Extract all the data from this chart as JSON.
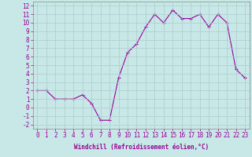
{
  "x": [
    0,
    1,
    2,
    3,
    4,
    5,
    6,
    7,
    8,
    9,
    10,
    11,
    12,
    13,
    14,
    15,
    16,
    17,
    18,
    19,
    20,
    21,
    22,
    23
  ],
  "y": [
    2,
    2,
    1,
    1,
    1,
    1.5,
    0.5,
    -1.5,
    -1.5,
    3.5,
    6.5,
    7.5,
    9.5,
    11,
    10,
    11.5,
    10.5,
    10.5,
    11,
    9.5,
    11,
    10,
    4.5,
    3.5
  ],
  "line_color": "#990099",
  "marker": "+",
  "markersize": 3,
  "linewidth": 0.8,
  "xlabel": "Windchill (Refroidissement éolien,°C)",
  "xlabel_fontsize": 5.5,
  "ylabel_ticks": [
    -2,
    -1,
    0,
    1,
    2,
    3,
    4,
    5,
    6,
    7,
    8,
    9,
    10,
    11,
    12
  ],
  "xtick_labels": [
    "0",
    "1",
    "2",
    "3",
    "4",
    "5",
    "6",
    "7",
    "8",
    "9",
    "10",
    "11",
    "12",
    "13",
    "14",
    "15",
    "16",
    "17",
    "18",
    "19",
    "20",
    "21",
    "22",
    "23"
  ],
  "ylim": [
    -2.5,
    12.5
  ],
  "xlim": [
    -0.5,
    23.5
  ],
  "bg_color": "#c8e8e8",
  "grid_color": "#aacccc",
  "tick_color": "#990099",
  "tick_fontsize": 5.5,
  "spine_color": "#888888"
}
